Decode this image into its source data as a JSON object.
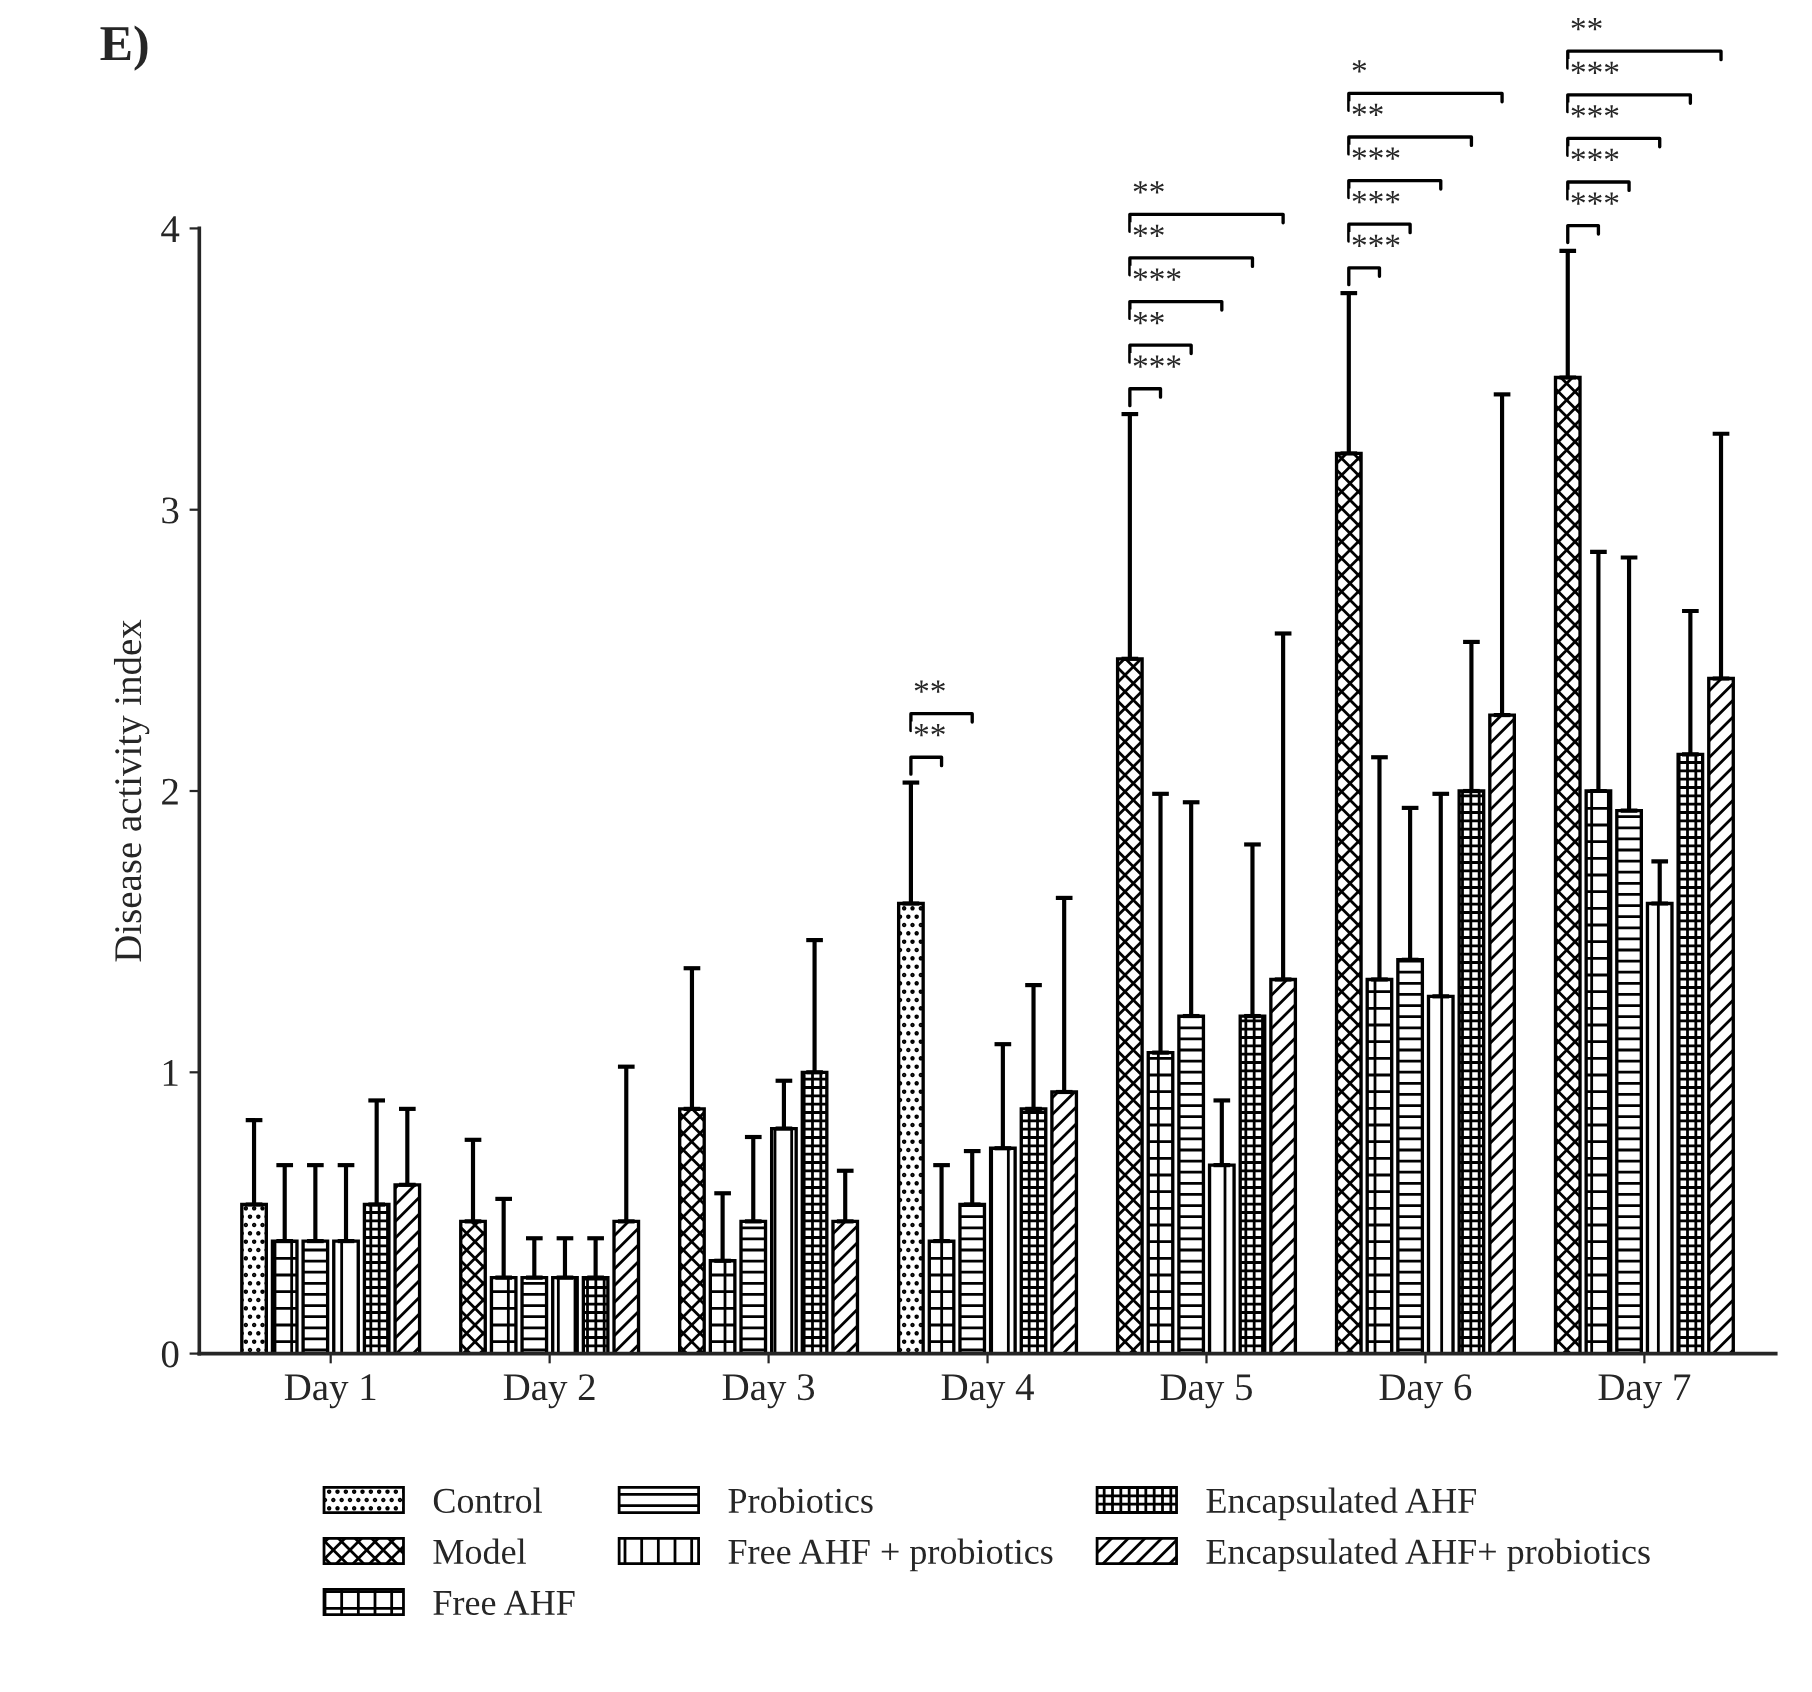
{
  "chart_data": {
    "type": "bar",
    "title": "E)",
    "ylabel": "Disease activity index",
    "categories": [
      "Day 1",
      "Day 2",
      "Day 3",
      "Day 4",
      "Day 5",
      "Day 6",
      "Day 7"
    ],
    "series": [
      {
        "name": "Control",
        "color": "#000000",
        "values": [
          0.53,
          null,
          null,
          1.6,
          null,
          null,
          null
        ],
        "errors": [
          [
            0.53,
            0.83
          ],
          null,
          null,
          [
            1.6,
            2.03
          ],
          null,
          null,
          null
        ]
      },
      {
        "name": "Model",
        "color": "#000000",
        "values": [
          null,
          0.47,
          0.87,
          null,
          2.47,
          3.2,
          3.47
        ],
        "errors": [
          null,
          [
            0.47,
            0.76
          ],
          [
            0.87,
            1.37
          ],
          null,
          [
            2.47,
            3.34
          ],
          [
            3.2,
            3.77
          ],
          [
            3.47,
            3.92
          ]
        ]
      },
      {
        "name": "Free AHF",
        "color": "#000000",
        "values": [
          0.4,
          0.27,
          0.33,
          0.4,
          1.07,
          1.33,
          2.0
        ],
        "errors": [
          [
            0.4,
            0.67
          ],
          [
            0.27,
            0.55
          ],
          [
            0.33,
            0.57
          ],
          [
            0.4,
            0.67
          ],
          [
            1.07,
            1.99
          ],
          [
            1.33,
            2.12
          ],
          [
            2.0,
            2.85
          ]
        ]
      },
      {
        "name": "Probiotics",
        "color": "#000000",
        "values": [
          0.4,
          0.27,
          0.47,
          0.53,
          1.2,
          1.4,
          1.93
        ],
        "errors": [
          [
            0.4,
            0.67
          ],
          [
            0.27,
            0.41
          ],
          [
            0.47,
            0.77
          ],
          [
            0.53,
            0.72
          ],
          [
            1.2,
            1.96
          ],
          [
            1.4,
            1.94
          ],
          [
            1.93,
            2.83
          ]
        ]
      },
      {
        "name": "Free AHF + probiotics",
        "color": "#000000",
        "values": [
          0.4,
          0.27,
          0.8,
          0.73,
          0.67,
          1.27,
          1.6
        ],
        "errors": [
          [
            0.4,
            0.67
          ],
          [
            0.27,
            0.41
          ],
          [
            0.8,
            0.97
          ],
          [
            0.73,
            1.1
          ],
          [
            0.67,
            0.9
          ],
          [
            1.27,
            1.99
          ],
          [
            1.6,
            1.75
          ]
        ]
      },
      {
        "name": "Encapsulated AHF",
        "color": "#000000",
        "values": [
          0.53,
          0.27,
          1.0,
          0.87,
          1.2,
          2.0,
          2.13
        ],
        "errors": [
          [
            0.53,
            0.9
          ],
          [
            0.27,
            0.41
          ],
          [
            1.0,
            1.47
          ],
          [
            0.87,
            1.31
          ],
          [
            1.2,
            1.81
          ],
          [
            2.0,
            2.53
          ],
          [
            2.13,
            2.64
          ]
        ]
      },
      {
        "name": "Encapsulated AHF+ probiotics",
        "color": "#000000",
        "values": [
          0.6,
          0.47,
          0.47,
          0.93,
          1.33,
          2.27,
          2.4
        ],
        "errors": [
          [
            0.6,
            0.87
          ],
          [
            0.47,
            1.02
          ],
          [
            0.47,
            0.65
          ],
          [
            0.93,
            1.62
          ],
          [
            1.33,
            2.56
          ],
          [
            2.27,
            3.41
          ],
          [
            2.4,
            3.27
          ]
        ]
      }
    ],
    "ylim": [
      0,
      4
    ],
    "yticks": [
      0,
      1,
      2,
      3,
      4
    ],
    "grid": false,
    "legend": "bottom",
    "annotations": [
      "**",
      "**",
      "***",
      "**",
      "***",
      "**",
      "**",
      "***",
      "***",
      "***",
      "**",
      "*",
      "***",
      "***",
      "***",
      "***",
      "**"
    ]
  }
}
